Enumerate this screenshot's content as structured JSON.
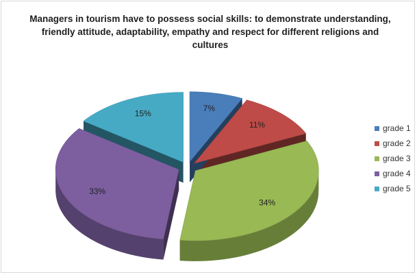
{
  "chart_data": {
    "type": "pie",
    "title": "Managers in tourism have to possess social skills: to demonstrate understanding, friendly attitude, adaptability, empathy and respect for different religions and cultures",
    "categories": [
      "grade 1",
      "grade 2",
      "grade 3",
      "grade 4",
      "grade 5"
    ],
    "values": [
      7,
      11,
      34,
      33,
      15
    ],
    "labels": [
      "7%",
      "11%",
      "34%",
      "33%",
      "15%"
    ],
    "colors": [
      "#4a7ebb",
      "#be4b48",
      "#98b954",
      "#7d5fa0",
      "#46aac5"
    ],
    "exploded": true,
    "three_d": true,
    "legend_position": "right"
  }
}
